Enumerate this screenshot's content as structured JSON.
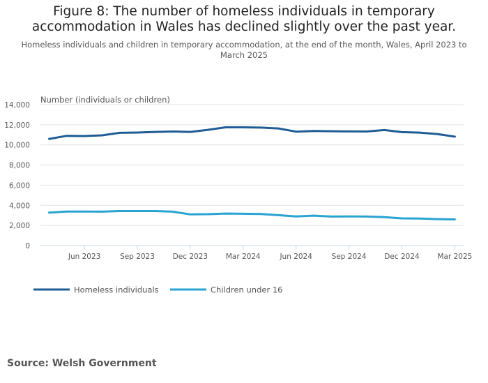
{
  "title": "Figure 8: The number of homeless individuals in temporary accommodation in Wales has declined slightly over the past year.",
  "subtitle": "Homeless individuals and children in temporary accommodation, at the end of the month, Wales, April 2023 to March 2025",
  "source": "Source: Welsh Government",
  "chart_data": {
    "type": "line",
    "ylabel": "Number (individuals or children)",
    "xlabel": "",
    "ylim": [
      0,
      14000
    ],
    "yticks": [
      0,
      2000,
      4000,
      6000,
      8000,
      10000,
      12000,
      14000
    ],
    "ytick_labels": [
      "0",
      "2,000",
      "4,000",
      "6,000",
      "8,000",
      "10,000",
      "12,000",
      "14,000"
    ],
    "grid": true,
    "legend_position": "bottom-left",
    "x": [
      "Apr 2023",
      "May 2023",
      "Jun 2023",
      "Jul 2023",
      "Aug 2023",
      "Sep 2023",
      "Oct 2023",
      "Nov 2023",
      "Dec 2023",
      "Jan 2024",
      "Feb 2024",
      "Mar 2024",
      "Apr 2024",
      "May 2024",
      "Jun 2024",
      "Jul 2024",
      "Aug 2024",
      "Sep 2024",
      "Oct 2024",
      "Nov 2024",
      "Dec 2024",
      "Jan 2025",
      "Feb 2025",
      "Mar 2025"
    ],
    "xticks": [
      {
        "index": 2,
        "label": "Jun 2023"
      },
      {
        "index": 5,
        "label": "Sep 2023"
      },
      {
        "index": 8,
        "label": "Dec 2023"
      },
      {
        "index": 11,
        "label": "Mar 2024"
      },
      {
        "index": 14,
        "label": "Jun 2024"
      },
      {
        "index": 17,
        "label": "Sep 2024"
      },
      {
        "index": 20,
        "label": "Dec 2024"
      },
      {
        "index": 23,
        "label": "Mar 2025"
      }
    ],
    "series": [
      {
        "name": "Homeless individuals",
        "color": "#1f5d94",
        "values": [
          10600,
          10900,
          10880,
          10950,
          11200,
          11230,
          11290,
          11330,
          11290,
          11500,
          11750,
          11750,
          11720,
          11640,
          11320,
          11380,
          11360,
          11340,
          11330,
          11480,
          11270,
          11220,
          11080,
          10820
        ]
      },
      {
        "name": "Children under 16",
        "color": "#29a3d1",
        "values": [
          3280,
          3380,
          3380,
          3370,
          3430,
          3430,
          3430,
          3370,
          3100,
          3120,
          3180,
          3160,
          3130,
          3020,
          2900,
          2970,
          2880,
          2900,
          2880,
          2830,
          2700,
          2690,
          2630,
          2600
        ]
      }
    ]
  }
}
